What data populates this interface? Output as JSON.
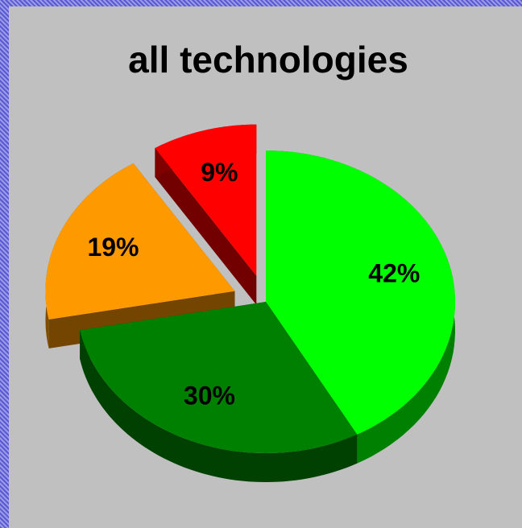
{
  "chart_data": {
    "type": "pie",
    "title": "all technologies",
    "categories": [
      null,
      null,
      null,
      null
    ],
    "values": [
      42,
      30,
      19,
      9
    ],
    "value_labels": [
      "42%",
      "30%",
      "19%",
      "9%"
    ],
    "colors": [
      "#00ff00",
      "#008000",
      "#ff9900",
      "#ff0000"
    ],
    "exploded": [
      false,
      false,
      true,
      true
    ]
  }
}
